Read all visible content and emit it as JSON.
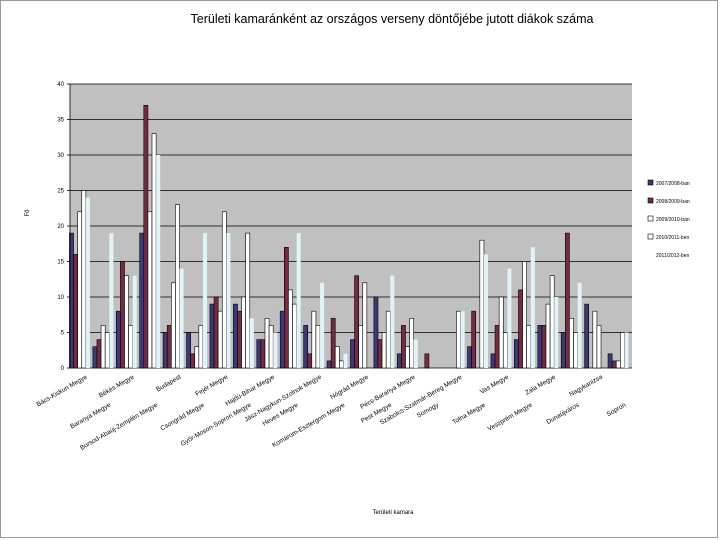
{
  "chart_data": {
    "type": "bar",
    "title": "Területi kamaránként az országos verseny döntőjébe jutott diákok száma",
    "xlabel": "Területi kamara",
    "ylabel": "Fő",
    "ylim": [
      0,
      40
    ],
    "yticks": [
      0,
      5,
      10,
      15,
      20,
      25,
      30,
      35,
      40
    ],
    "grid": true,
    "legend_position": "right",
    "colors": {
      "plot_bg": "#c0c0c0",
      "grid": "#000000",
      "series": [
        "#3a3a7a",
        "#7a2a40",
        "#ffffff",
        "#ffffff",
        "#e0f4f8"
      ]
    },
    "categories": [
      "Bács-Kiskun Megye",
      "Baranya Megye",
      "Békés Megye",
      "Borsod-Abaúj-Zemplén Megye",
      "Budapest",
      "Csongrád Megye",
      "Fejér Megye",
      "Győr-Moson-Sopron Megye",
      "Hajdú-Bihar Megye",
      "Heves Megye",
      "Jász-Nagykun-Szolnok Megye",
      "Komárom-Esztergom Megye",
      "Nógrád Megye",
      "Pest Megye",
      "Pécs-Baranya Megye",
      "Somogy",
      "Szabolcs-Szatmár-Bereg Megye",
      "Tolna Megye",
      "Vas Megye",
      "Veszprém Megye",
      "Zala Megye",
      "Dunaújváros",
      "Nagykanizsa",
      "Sopron"
    ],
    "series": [
      {
        "name": "2007/2008-ban",
        "values": [
          19,
          3,
          8,
          19,
          5,
          5,
          9,
          9,
          4,
          8,
          6,
          1,
          4,
          10,
          2,
          0,
          0,
          3,
          2,
          4,
          6,
          5,
          9,
          2
        ]
      },
      {
        "name": "2008/2009-ban",
        "values": [
          16,
          4,
          15,
          37,
          6,
          2,
          10,
          8,
          4,
          17,
          2,
          7,
          13,
          4,
          6,
          2,
          0,
          8,
          6,
          11,
          6,
          19,
          0,
          1
        ]
      },
      {
        "name": "2009/2010-ban",
        "values": [
          22,
          6,
          13,
          22,
          12,
          3,
          8,
          10,
          7,
          11,
          8,
          3,
          6,
          5,
          3,
          0,
          0,
          0,
          10,
          15,
          9,
          7,
          8,
          1
        ]
      },
      {
        "name": "2010/2011-ben",
        "values": [
          25,
          5,
          6,
          33,
          23,
          6,
          22,
          19,
          6,
          9,
          6,
          1,
          12,
          8,
          7,
          0,
          8,
          18,
          5,
          6,
          13,
          5,
          6,
          5
        ]
      },
      {
        "name": "2011/2012-ben",
        "values": [
          24,
          19,
          13,
          30,
          14,
          19,
          19,
          7,
          5,
          19,
          12,
          2,
          0,
          13,
          4,
          0,
          8,
          16,
          14,
          17,
          10,
          12,
          0,
          5
        ]
      }
    ]
  }
}
